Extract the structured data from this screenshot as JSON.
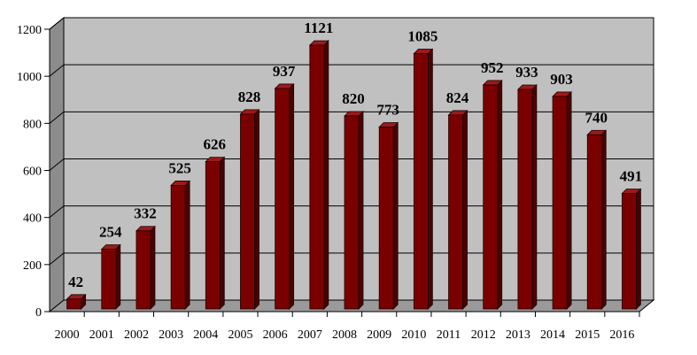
{
  "chart_data": {
    "type": "bar",
    "categories": [
      "2000",
      "2001",
      "2002",
      "2003",
      "2004",
      "2005",
      "2006",
      "2007",
      "2008",
      "2009",
      "2010",
      "2011",
      "2012",
      "2013",
      "2014",
      "2015",
      "2016"
    ],
    "values": [
      42,
      254,
      332,
      525,
      626,
      828,
      937,
      1121,
      820,
      773,
      1085,
      824,
      952,
      933,
      903,
      740,
      491
    ],
    "title": "",
    "xlabel": "",
    "ylabel": "",
    "ylim": [
      0,
      1200
    ],
    "yticks": [
      0,
      200,
      400,
      600,
      800,
      1000,
      1200
    ],
    "ytick_labels": [
      "0",
      "200",
      "400",
      "600",
      "800",
      "1000",
      "1200"
    ],
    "grid": true,
    "legend": "none",
    "style": "3d-column",
    "colors": {
      "bar_front": "#7a0000",
      "bar_side": "#4a0000",
      "bar_top": "#a01818",
      "plot_back": "#c0c0c0",
      "plot_side_wall": "#8c8c8c",
      "plot_floor": "#9a9a9a",
      "gridline": "#000000"
    }
  }
}
